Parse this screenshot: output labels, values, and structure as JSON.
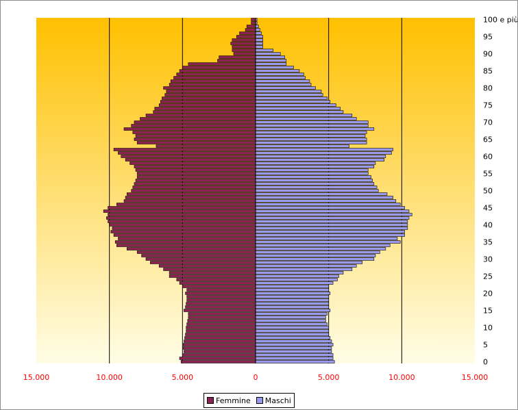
{
  "chart_data": {
    "type": "bar",
    "orientation": "horizontal-population-pyramid",
    "title": "",
    "xlabel": "",
    "ylabel": "",
    "xlim": [
      -15000,
      15000
    ],
    "x_ticks": [
      -15000,
      -10000,
      -5000,
      0,
      5000,
      10000,
      15000
    ],
    "x_tick_labels": [
      "15.000",
      "10.000",
      "5.000",
      "0",
      "5.000",
      "10.000",
      "15.000"
    ],
    "y_tick_labels": [
      "0",
      "5",
      "10",
      "15",
      "20",
      "25",
      "30",
      "35",
      "40",
      "45",
      "50",
      "55",
      "60",
      "65",
      "70",
      "75",
      "80",
      "85",
      "90",
      "95",
      "100 e più"
    ],
    "categories": [
      "0",
      "1",
      "2",
      "3",
      "4",
      "5",
      "6",
      "7",
      "8",
      "9",
      "10",
      "11",
      "12",
      "13",
      "14",
      "15",
      "16",
      "17",
      "18",
      "19",
      "20",
      "21",
      "22",
      "23",
      "24",
      "25",
      "26",
      "27",
      "28",
      "29",
      "30",
      "31",
      "32",
      "33",
      "34",
      "35",
      "36",
      "37",
      "38",
      "39",
      "40",
      "41",
      "42",
      "43",
      "44",
      "45",
      "46",
      "47",
      "48",
      "49",
      "50",
      "51",
      "52",
      "53",
      "54",
      "55",
      "56",
      "57",
      "58",
      "59",
      "60",
      "61",
      "62",
      "63",
      "64",
      "65",
      "66",
      "67",
      "68",
      "69",
      "70",
      "71",
      "72",
      "73",
      "74",
      "75",
      "76",
      "77",
      "78",
      "79",
      "80",
      "81",
      "82",
      "83",
      "84",
      "85",
      "86",
      "87",
      "88",
      "89",
      "90",
      "91",
      "92",
      "93",
      "94",
      "95",
      "96",
      "97",
      "98",
      "99",
      "100 e più"
    ],
    "grid": true,
    "legend_placement": "bottom",
    "colors": {
      "femmine": "#8b2252",
      "maschi": "#9999ee",
      "plot_top": "#ffc000",
      "plot_bottom": "#fffde6",
      "gridline": "#000000",
      "x_tick_text": "#ff0000"
    },
    "series": [
      {
        "name": "Femmine",
        "values": [
          5100,
          5200,
          5000,
          4900,
          4950,
          4950,
          4900,
          4850,
          4800,
          4750,
          4750,
          4700,
          4650,
          4600,
          4600,
          4900,
          4800,
          4750,
          4700,
          4700,
          4800,
          4700,
          5000,
          5200,
          5400,
          5900,
          5900,
          6300,
          6600,
          7200,
          7500,
          7800,
          8100,
          8800,
          9500,
          9600,
          9400,
          9700,
          9900,
          9800,
          10000,
          10100,
          10200,
          10100,
          10400,
          10100,
          9500,
          9000,
          8900,
          8800,
          8500,
          8400,
          8300,
          8200,
          8100,
          8100,
          8200,
          8300,
          8600,
          8900,
          9200,
          9400,
          9700,
          6800,
          8100,
          8300,
          8200,
          8400,
          9000,
          8500,
          8300,
          7900,
          7500,
          7000,
          6900,
          6600,
          6500,
          6400,
          6200,
          6100,
          6300,
          5900,
          5800,
          5600,
          5400,
          5200,
          5000,
          4600,
          2600,
          2500,
          1500,
          1600,
          1600,
          1700,
          1600,
          1300,
          1100,
          700,
          600,
          300,
          300
        ]
      },
      {
        "name": "Maschi",
        "values": [
          5400,
          5300,
          5300,
          5200,
          5200,
          5300,
          5200,
          5100,
          5000,
          5000,
          5000,
          4900,
          4800,
          4800,
          4900,
          5100,
          5000,
          5000,
          5000,
          5000,
          5100,
          5000,
          5000,
          5300,
          5600,
          5700,
          6000,
          6600,
          6900,
          7300,
          8100,
          8200,
          8500,
          8900,
          9200,
          9900,
          9700,
          10200,
          10200,
          10400,
          10400,
          10400,
          10500,
          10700,
          10500,
          10200,
          9900,
          9600,
          9400,
          9000,
          8400,
          8300,
          8100,
          8000,
          7900,
          7700,
          7700,
          8100,
          8200,
          8800,
          8900,
          9300,
          9400,
          6400,
          7600,
          7600,
          7500,
          7600,
          8100,
          7700,
          7700,
          6900,
          6600,
          6000,
          5800,
          5500,
          5100,
          4900,
          4600,
          4500,
          4100,
          3800,
          3700,
          3400,
          3300,
          3000,
          2600,
          2100,
          2100,
          2000,
          1700,
          1200,
          500,
          500,
          500,
          500,
          400,
          300,
          200,
          100,
          100
        ]
      }
    ],
    "legend": [
      "Femmine",
      "Maschi"
    ]
  }
}
